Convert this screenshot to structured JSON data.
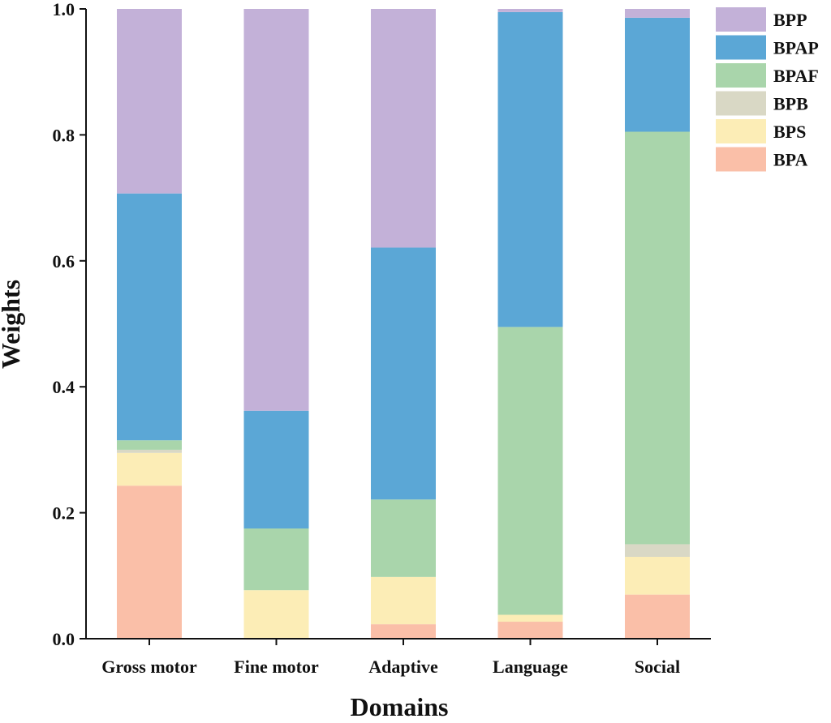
{
  "chart_data": {
    "type": "bar",
    "stacked": true,
    "title": "",
    "xlabel": "Domains",
    "ylabel": "Weights",
    "ylim": [
      0,
      1.0
    ],
    "yticks": [
      "0.0",
      "0.2",
      "0.4",
      "0.6",
      "0.8",
      "1.0"
    ],
    "grid": false,
    "legend_position": "top-right",
    "categories": [
      "Gross motor",
      "Fine motor",
      "Adaptive",
      "Language",
      "Social"
    ],
    "series": [
      {
        "name": "BPA",
        "color": "#FABFA8",
        "values": [
          0.243,
          0.0,
          0.023,
          0.027,
          0.07
        ]
      },
      {
        "name": "BPS",
        "color": "#FCEDB6",
        "values": [
          0.052,
          0.077,
          0.075,
          0.011,
          0.06
        ]
      },
      {
        "name": "BPB",
        "color": "#D9D8C5",
        "values": [
          0.005,
          0.0,
          0.0,
          0.0,
          0.02
        ]
      },
      {
        "name": "BPAF",
        "color": "#A9D5AB",
        "values": [
          0.015,
          0.098,
          0.123,
          0.457,
          0.655
        ]
      },
      {
        "name": "BPAP",
        "color": "#5BA7D6",
        "values": [
          0.392,
          0.187,
          0.4,
          0.5,
          0.181
        ]
      },
      {
        "name": "BPP",
        "color": "#C3B1D8",
        "values": [
          0.293,
          0.638,
          0.379,
          0.005,
          0.014
        ]
      }
    ]
  }
}
